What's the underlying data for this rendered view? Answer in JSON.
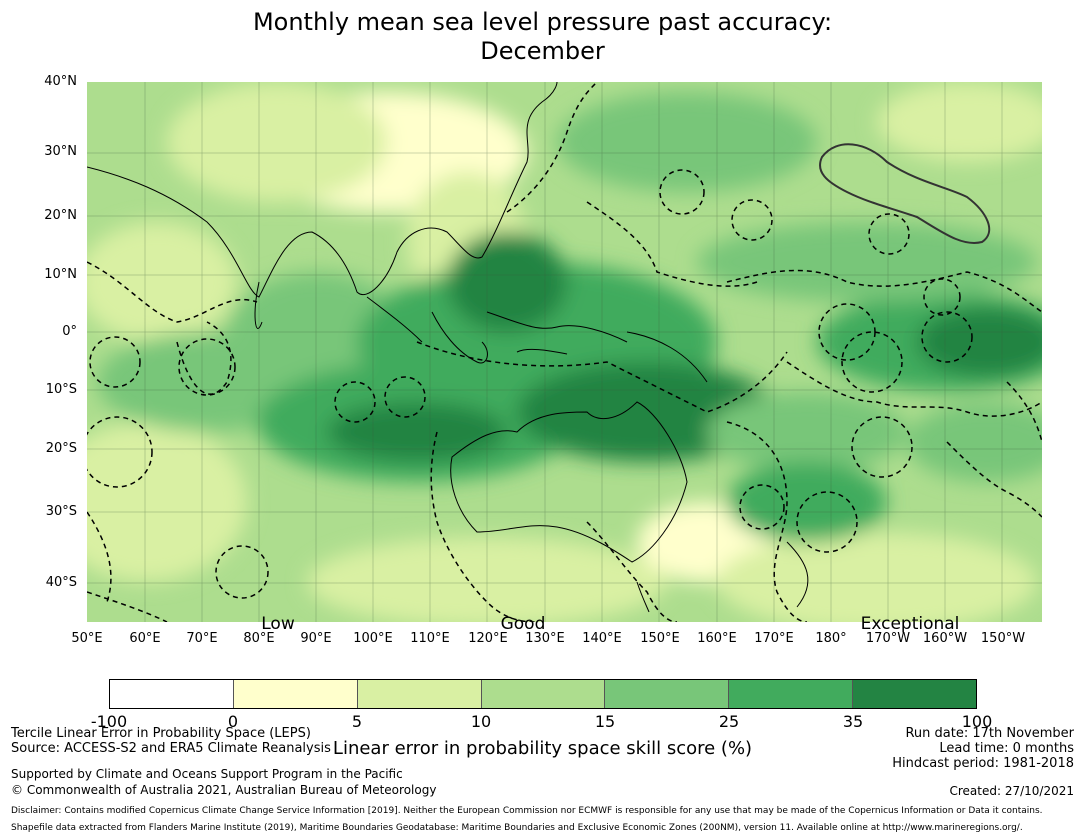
{
  "title": {
    "line1": "Monthly mean sea level pressure past accuracy:",
    "line2": "December"
  },
  "map": {
    "latitude_labels": [
      "40°N",
      "30°N",
      "20°N",
      "10°N",
      "0°",
      "10°S",
      "20°S",
      "30°S",
      "40°S"
    ],
    "longitude_labels": [
      "50°E",
      "60°E",
      "70°E",
      "80°E",
      "90°E",
      "100°E",
      "110°E",
      "120°E",
      "130°E",
      "140°E",
      "150°E",
      "160°E",
      "170°E",
      "180°",
      "170°W",
      "160°W",
      "150°W"
    ],
    "category_labels": [
      "Low",
      "Good",
      "Exceptional"
    ]
  },
  "colorbar": {
    "colors": [
      "#ffffff",
      "#ffffcc",
      "#d9f0a3",
      "#addd8e",
      "#78c679",
      "#41ab5d",
      "#238443"
    ],
    "ticks": [
      "-100",
      "0",
      "5",
      "10",
      "15",
      "25",
      "35",
      "100"
    ],
    "label": "Linear error in probability space skill score (%)"
  },
  "footer": {
    "left1": "Tercile Linear Error in Probability Space (LEPS)",
    "left2": "Source: ACCESS-S2 and ERA5 Climate Reanalysis",
    "support1": "Supported by Climate and Oceans Support Program in the Pacific",
    "support2": "© Commonwealth of Australia 2021, Australian Bureau of Meteorology",
    "run_date": "Run date: 17th November",
    "lead_time": "Lead time: 0 months",
    "hindcast": "Hindcast period: 1981-2018",
    "created": "Created: 27/10/2021",
    "disclaimer": "Disclaimer: Contains modified Copernicus Climate Change Service Information [2019]. Neither the European Commission nor ECMWF is responsible for any use that may be made of the Copernicus Information or Data it contains.",
    "shapefile": "Shapefile data extracted from Flanders Marine Institute (2019), Maritime Boundaries Geodatabase: Maritime Boundaries and Exclusive Economic Zones (200NM), version 11. Available online at http://www.marineregions.org/."
  }
}
